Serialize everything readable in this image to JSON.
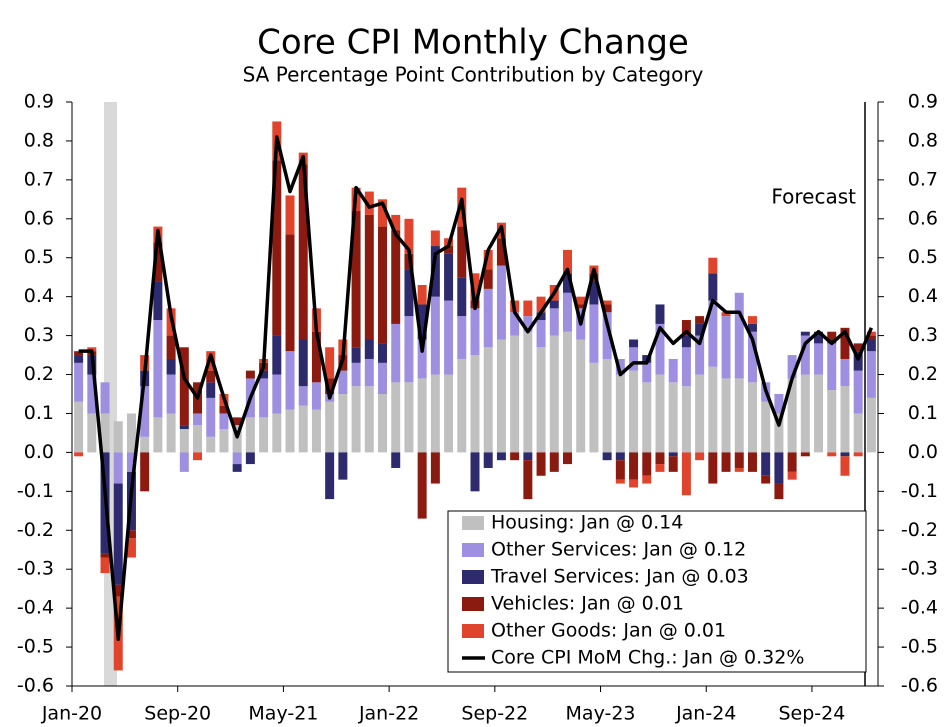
{
  "chart_data": {
    "type": "bar",
    "title": "Core CPI Monthly Change",
    "subtitle": "SA Percentage Point Contribution by Category",
    "annotation": "Forecast",
    "categories": [
      "Jan-20",
      null,
      null,
      null,
      null,
      null,
      null,
      null,
      "Sep-20",
      null,
      null,
      null,
      null,
      null,
      null,
      null,
      "May-21",
      null,
      null,
      null,
      null,
      null,
      null,
      null,
      "Jan-22",
      null,
      null,
      null,
      null,
      null,
      null,
      null,
      "Sep-22",
      null,
      null,
      null,
      null,
      null,
      null,
      null,
      "May-23",
      null,
      null,
      null,
      null,
      null,
      null,
      null,
      "Jan-24",
      null,
      null,
      null,
      null,
      null,
      null,
      null,
      "Sep-24",
      null,
      null,
      null,
      null
    ],
    "ylim": [
      -0.6,
      0.9
    ],
    "yticks": [
      -0.6,
      -0.5,
      -0.4,
      -0.3,
      -0.2,
      -0.1,
      {
        "value": 0,
        "label": "0.0"
      },
      0.1,
      0.2,
      0.3,
      0.4,
      0.5,
      0.6,
      0.7,
      0.8,
      0.9
    ],
    "y2lim": [
      -0.6,
      0.9
    ],
    "y2ticks": [
      -0.6,
      -0.5,
      -0.4,
      -0.3,
      -0.2,
      -0.1,
      {
        "value": 0,
        "label": "0.0"
      },
      0.1,
      0.2,
      0.3,
      0.4,
      0.5,
      0.6,
      0.7,
      0.8,
      0.9
    ],
    "legend": "lower right",
    "series": [
      {
        "name": "Housing: Jan @ 0.14",
        "color": "#c0c0c0",
        "values": [
          0.13,
          0.1,
          0.1,
          0.08,
          0.1,
          0.04,
          0.09,
          0.1,
          0.06,
          0.07,
          0.04,
          0.06,
          0.07,
          0.09,
          0.09,
          0.1,
          0.11,
          0.12,
          0.11,
          0.13,
          0.15,
          0.17,
          0.17,
          0.15,
          0.18,
          0.18,
          0.19,
          0.2,
          0.2,
          0.24,
          0.25,
          0.27,
          0.29,
          0.3,
          0.31,
          0.27,
          0.3,
          0.31,
          0.29,
          0.23,
          0.24,
          0.2,
          0.21,
          0.18,
          0.2,
          0.18,
          0.17,
          0.2,
          0.22,
          0.19,
          0.19,
          0.18,
          0.13,
          0.1,
          0.19,
          0.2,
          0.2,
          0.16,
          0.17,
          0.1,
          0.14
        ]
      },
      {
        "name": "Other Services: Jan @ 0.12",
        "color": "#9f8fe0",
        "values": [
          0.1,
          0.1,
          0.08,
          -0.08,
          -0.05,
          0.13,
          0.25,
          0.1,
          -0.05,
          0.03,
          0.1,
          0.04,
          -0.03,
          0.1,
          0.1,
          0.1,
          0.15,
          0.05,
          0.07,
          0.02,
          0.06,
          0.06,
          0.07,
          0.08,
          0.15,
          0.17,
          0.1,
          0.2,
          0.19,
          0.11,
          0.12,
          0.15,
          0.19,
          0.06,
          0.04,
          0.07,
          0.07,
          0.1,
          0.08,
          0.15,
          0.12,
          0.04,
          0.06,
          0.05,
          0.13,
          0.06,
          0.1,
          0.1,
          0.17,
          0.16,
          0.22,
          0.13,
          0.05,
          0.05,
          0.06,
          0.1,
          0.08,
          0.12,
          0.07,
          0.11,
          0.12
        ]
      },
      {
        "name": "Travel Services: Jan @ 0.03",
        "color": "#2e2a6e",
        "values": [
          0.02,
          0.05,
          -0.26,
          -0.26,
          -0.15,
          0.04,
          0.1,
          0.04,
          0.01,
          0.0,
          0.04,
          0.0,
          -0.02,
          -0.03,
          0.02,
          0.1,
          0.0,
          0.12,
          0.0,
          -0.12,
          -0.07,
          0.04,
          0.05,
          0.05,
          -0.04,
          0.12,
          0.09,
          0.13,
          0.12,
          0.1,
          -0.1,
          -0.04,
          -0.02,
          0.0,
          -0.02,
          0.02,
          0.02,
          0.05,
          0.0,
          0.06,
          -0.02,
          -0.02,
          0.02,
          0.02,
          0.05,
          -0.01,
          0.03,
          0.03,
          0.07,
          0.0,
          0.0,
          0.02,
          -0.06,
          -0.08,
          0.0,
          0.01,
          0.03,
          0.01,
          -0.01,
          0.05,
          0.03
        ]
      },
      {
        "name": "Vehicles: Jan @ 0.01",
        "color": "#8b1a10",
        "values": [
          0.01,
          0.01,
          -0.01,
          -0.03,
          -0.02,
          -0.1,
          0.1,
          0.06,
          0.2,
          0.08,
          0.03,
          0.02,
          0.02,
          0.02,
          0.02,
          0.45,
          0.3,
          0.45,
          0.13,
          0.04,
          0.04,
          0.35,
          0.32,
          0.3,
          0.24,
          0.04,
          -0.17,
          -0.08,
          0.02,
          0.13,
          0.02,
          0.05,
          0.07,
          -0.02,
          -0.1,
          -0.06,
          -0.05,
          -0.03,
          0.01,
          0.02,
          0.02,
          -0.05,
          -0.07,
          -0.06,
          -0.03,
          -0.04,
          0.04,
          0.02,
          -0.08,
          -0.05,
          -0.04,
          -0.05,
          -0.02,
          -0.04,
          -0.05,
          -0.01,
          0.0,
          0.02,
          0.08,
          0.02,
          0.01
        ]
      },
      {
        "name": "Other Goods: Jan @ 0.01",
        "color": "#e0442c",
        "values": [
          -0.01,
          0.01,
          -0.04,
          -0.19,
          -0.05,
          0.04,
          0.04,
          0.07,
          0.0,
          -0.02,
          0.05,
          0.03,
          0.0,
          0.0,
          0.01,
          0.1,
          0.1,
          0.03,
          0.06,
          0.08,
          0.04,
          0.06,
          0.06,
          0.07,
          0.04,
          0.09,
          0.05,
          0.04,
          0.02,
          0.1,
          0.07,
          0.05,
          0.04,
          0.03,
          0.04,
          0.04,
          0.04,
          0.06,
          0.02,
          0.02,
          0.01,
          -0.01,
          -0.02,
          -0.02,
          -0.02,
          0.0,
          -0.11,
          -0.02,
          0.04,
          0.01,
          -0.01,
          0.02,
          0.0,
          0.0,
          -0.02,
          0.0,
          0.0,
          -0.01,
          -0.05,
          -0.01,
          0.01
        ]
      },
      {
        "name": "Core CPI MoM Chg.: Jan @ 0.32%",
        "color": "#000000",
        "type": "line",
        "values": [
          0.26,
          0.26,
          -0.1,
          -0.48,
          -0.1,
          0.2,
          0.57,
          0.35,
          0.19,
          0.14,
          0.25,
          0.14,
          0.04,
          0.14,
          0.22,
          0.81,
          0.67,
          0.76,
          0.31,
          0.14,
          0.24,
          0.68,
          0.63,
          0.64,
          0.56,
          0.52,
          0.26,
          0.51,
          0.53,
          0.65,
          0.37,
          0.52,
          0.58,
          0.36,
          0.31,
          0.36,
          0.41,
          0.47,
          0.33,
          0.47,
          0.33,
          0.2,
          0.23,
          0.23,
          0.32,
          0.28,
          0.31,
          0.28,
          0.39,
          0.36,
          0.36,
          0.29,
          0.16,
          0.07,
          0.19,
          0.28,
          0.31,
          0.28,
          0.31,
          0.24,
          0.32
        ]
      }
    ]
  }
}
